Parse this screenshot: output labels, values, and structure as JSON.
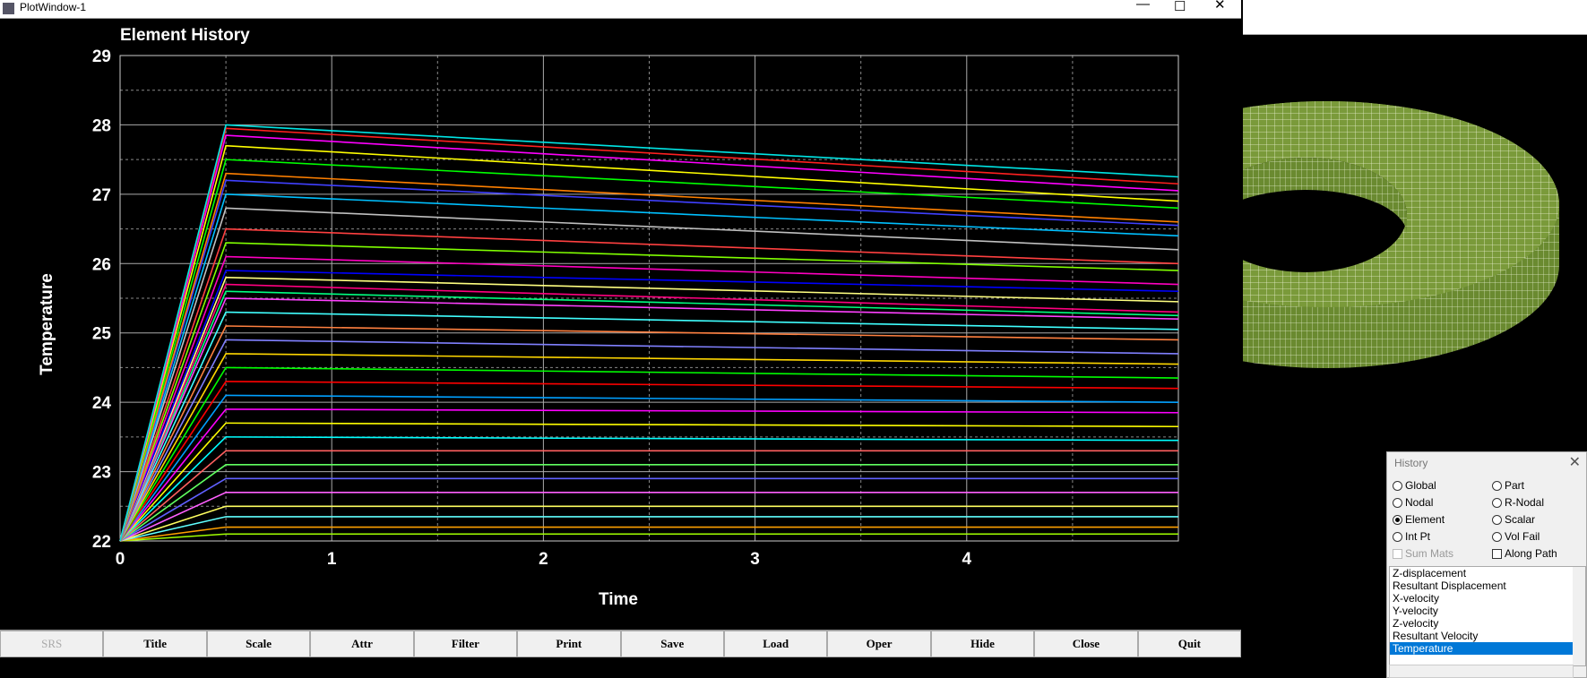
{
  "ui": {
    "window_title": "PlotWindow-1",
    "buttons": [
      {
        "label": "SRS",
        "disabled": true
      },
      {
        "label": "Title"
      },
      {
        "label": "Scale"
      },
      {
        "label": "Attr"
      },
      {
        "label": "Filter"
      },
      {
        "label": "Print"
      },
      {
        "label": "Save"
      },
      {
        "label": "Load"
      },
      {
        "label": "Oper"
      },
      {
        "label": "Hide"
      },
      {
        "label": "Close"
      },
      {
        "label": "Quit"
      }
    ]
  },
  "history": {
    "title": "History",
    "options": [
      {
        "label": "Global",
        "kind": "radio"
      },
      {
        "label": "Part",
        "kind": "radio"
      },
      {
        "label": "Nodal",
        "kind": "radio"
      },
      {
        "label": "R-Nodal",
        "kind": "radio"
      },
      {
        "label": "Element",
        "kind": "radio",
        "checked": true
      },
      {
        "label": "Scalar",
        "kind": "radio"
      },
      {
        "label": "Int Pt",
        "kind": "radio"
      },
      {
        "label": "Vol Fail",
        "kind": "radio"
      },
      {
        "label": "Sum Mats",
        "kind": "checkbox",
        "disabled": true
      },
      {
        "label": "Along Path",
        "kind": "checkbox"
      }
    ],
    "list": [
      "Z-displacement",
      "Resultant Displacement",
      "X-velocity",
      "Y-velocity",
      "Z-velocity",
      "Resultant Velocity",
      "Temperature"
    ],
    "selected_index": 6
  },
  "chart_data": {
    "type": "line",
    "title": "Element History",
    "x_label": "Time",
    "y_label": "Temperature",
    "x": [
      0,
      0.5,
      5
    ],
    "xlim": [
      0,
      5
    ],
    "xticks": [
      0,
      1,
      2,
      3,
      4
    ],
    "minor_xticks": [
      0.5,
      1.5,
      2.5,
      3.5,
      4.5
    ],
    "ylim": [
      22,
      29
    ],
    "yticks": [
      22,
      23,
      24,
      25,
      26,
      27,
      28,
      29
    ],
    "minor_yticks": [
      22.5,
      23.5,
      24.5,
      25.5,
      26.5,
      27.5,
      28.5
    ],
    "grid": true,
    "series": [
      {
        "color": "#00e5e5",
        "values": [
          22,
          28.0,
          27.25
        ]
      },
      {
        "color": "#ff2020",
        "values": [
          22,
          27.95,
          27.15
        ]
      },
      {
        "color": "#ff00ff",
        "values": [
          22,
          27.85,
          27.05
        ]
      },
      {
        "color": "#ffff00",
        "values": [
          22,
          27.7,
          26.9
        ]
      },
      {
        "color": "#00ff00",
        "values": [
          22,
          27.5,
          26.8
        ]
      },
      {
        "color": "#ff8000",
        "values": [
          22,
          27.3,
          26.6
        ]
      },
      {
        "color": "#4040ff",
        "values": [
          22,
          27.2,
          26.55
        ]
      },
      {
        "color": "#00c0ff",
        "values": [
          22,
          27.0,
          26.4
        ]
      },
      {
        "color": "#c0c0c0",
        "values": [
          22,
          26.8,
          26.2
        ]
      },
      {
        "color": "#ff4040",
        "values": [
          22,
          26.5,
          26.0
        ]
      },
      {
        "color": "#80ff00",
        "values": [
          22,
          26.3,
          25.9
        ]
      },
      {
        "color": "#ff00c0",
        "values": [
          22,
          26.1,
          25.7
        ]
      },
      {
        "color": "#0000ff",
        "values": [
          22,
          25.9,
          25.6
        ]
      },
      {
        "color": "#ffff80",
        "values": [
          22,
          25.8,
          25.45
        ]
      },
      {
        "color": "#ff0080",
        "values": [
          22,
          25.7,
          25.3
        ]
      },
      {
        "color": "#00ff80",
        "values": [
          22,
          25.6,
          25.25
        ]
      },
      {
        "color": "#ff40ff",
        "values": [
          22,
          25.5,
          25.2
        ]
      },
      {
        "color": "#40ffff",
        "values": [
          22,
          25.3,
          25.05
        ]
      },
      {
        "color": "#ff8040",
        "values": [
          22,
          25.1,
          24.9
        ]
      },
      {
        "color": "#8080ff",
        "values": [
          22,
          24.9,
          24.7
        ]
      },
      {
        "color": "#ffd700",
        "values": [
          22,
          24.7,
          24.55
        ]
      },
      {
        "color": "#00ff00",
        "values": [
          22,
          24.5,
          24.35
        ]
      },
      {
        "color": "#ff0000",
        "values": [
          22,
          24.3,
          24.2
        ]
      },
      {
        "color": "#00a0ff",
        "values": [
          22,
          24.1,
          24.0
        ]
      },
      {
        "color": "#ff00ff",
        "values": [
          22,
          23.9,
          23.85
        ]
      },
      {
        "color": "#ffff00",
        "values": [
          22,
          23.7,
          23.65
        ]
      },
      {
        "color": "#00ffff",
        "values": [
          22,
          23.5,
          23.45
        ]
      },
      {
        "color": "#ff6060",
        "values": [
          22,
          23.3,
          23.3
        ]
      },
      {
        "color": "#60ff60",
        "values": [
          22,
          23.1,
          23.1
        ]
      },
      {
        "color": "#6060ff",
        "values": [
          22,
          22.9,
          22.9
        ]
      },
      {
        "color": "#ff60ff",
        "values": [
          22,
          22.7,
          22.7
        ]
      },
      {
        "color": "#ffff60",
        "values": [
          22,
          22.5,
          22.5
        ]
      },
      {
        "color": "#60ffff",
        "values": [
          22,
          22.35,
          22.35
        ]
      },
      {
        "color": "#ffa000",
        "values": [
          22,
          22.2,
          22.2
        ]
      },
      {
        "color": "#a0ff00",
        "values": [
          22,
          22.1,
          22.1
        ]
      }
    ]
  }
}
